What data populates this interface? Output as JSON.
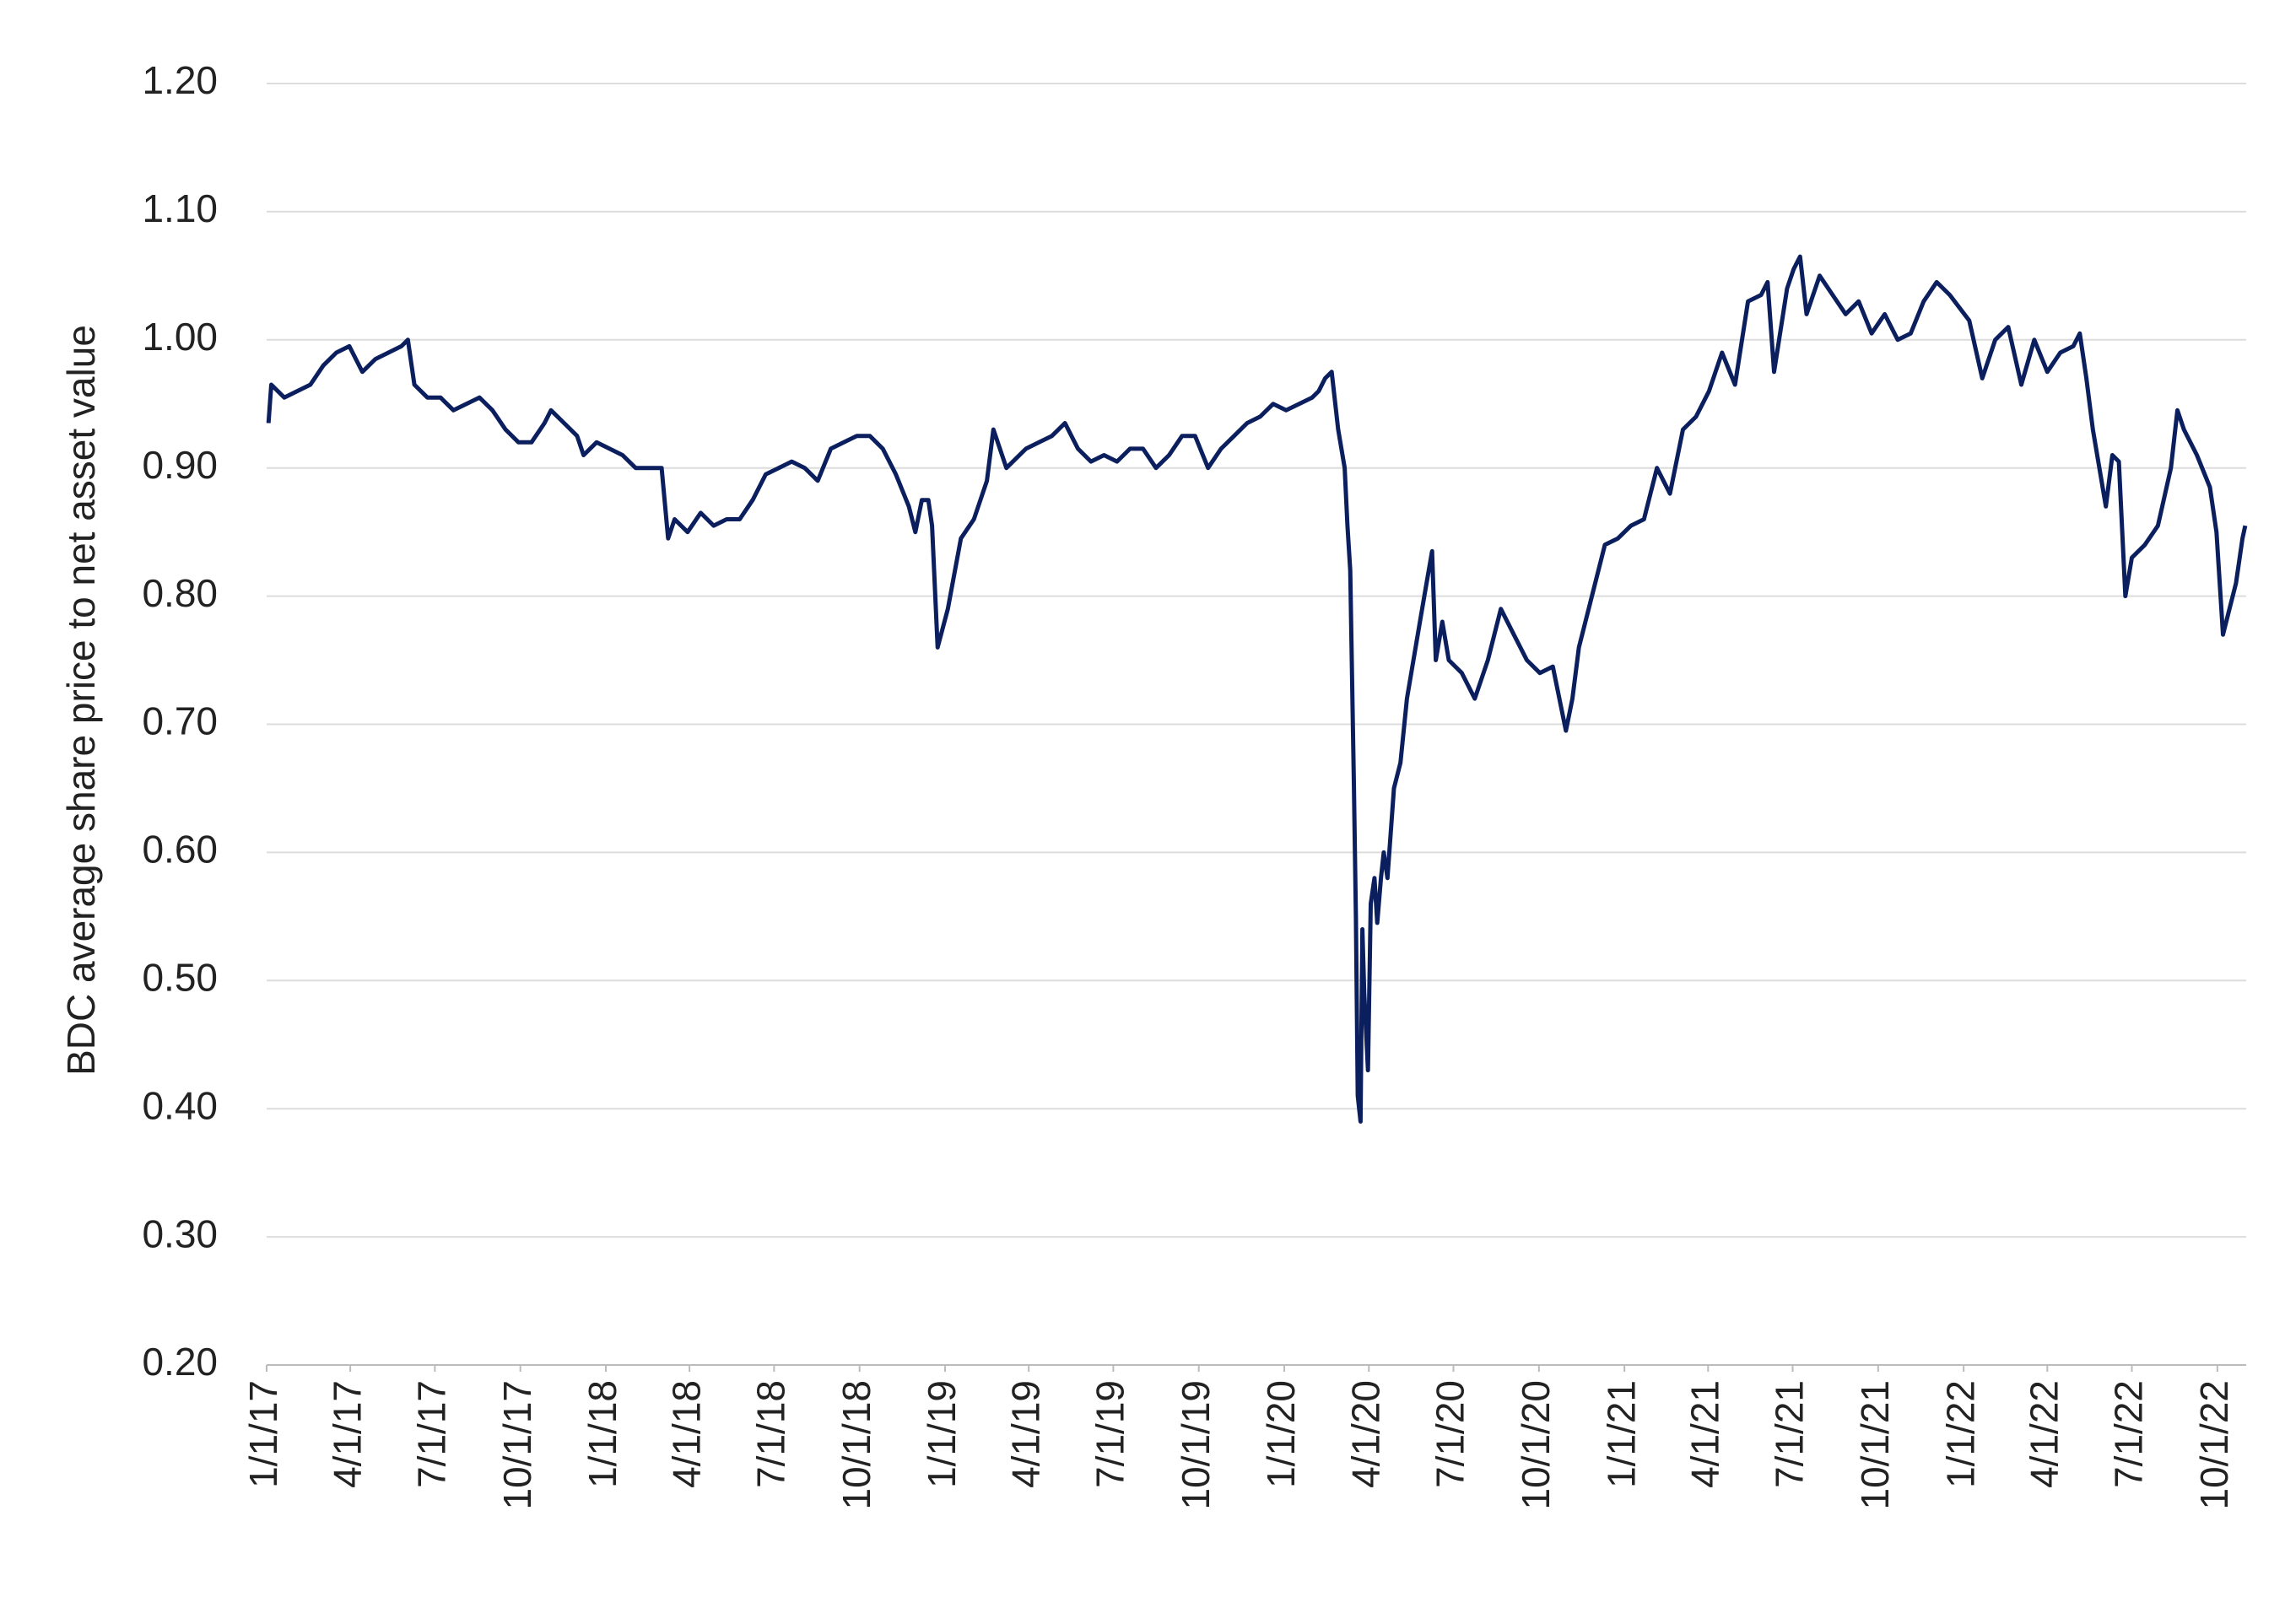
{
  "chart_data": {
    "type": "line",
    "y_label": "BDC average share price to net asset value",
    "x": [
      "2017-01-03",
      "2017-01-06",
      "2017-01-20",
      "2017-02-03",
      "2017-02-17",
      "2017-03-03",
      "2017-03-17",
      "2017-03-31",
      "2017-04-14",
      "2017-04-28",
      "2017-05-12",
      "2017-05-26",
      "2017-06-02",
      "2017-06-09",
      "2017-06-23",
      "2017-07-07",
      "2017-07-21",
      "2017-08-04",
      "2017-08-18",
      "2017-09-01",
      "2017-09-15",
      "2017-09-29",
      "2017-10-13",
      "2017-10-27",
      "2017-11-03",
      "2017-11-17",
      "2017-12-01",
      "2017-12-08",
      "2017-12-22",
      "2018-01-05",
      "2018-01-19",
      "2018-02-02",
      "2018-02-16",
      "2018-03-02",
      "2018-03-09",
      "2018-03-16",
      "2018-03-30",
      "2018-04-13",
      "2018-04-27",
      "2018-05-11",
      "2018-05-25",
      "2018-06-08",
      "2018-06-22",
      "2018-07-06",
      "2018-07-20",
      "2018-08-03",
      "2018-08-17",
      "2018-08-31",
      "2018-09-14",
      "2018-09-28",
      "2018-10-12",
      "2018-10-26",
      "2018-11-09",
      "2018-11-23",
      "2018-11-30",
      "2018-12-07",
      "2018-12-14",
      "2018-12-18",
      "2018-12-24",
      "2019-01-04",
      "2019-01-18",
      "2019-02-01",
      "2019-02-15",
      "2019-02-22",
      "2019-03-08",
      "2019-03-29",
      "2019-04-12",
      "2019-04-26",
      "2019-05-10",
      "2019-05-24",
      "2019-06-07",
      "2019-06-21",
      "2019-07-05",
      "2019-07-19",
      "2019-08-02",
      "2019-08-16",
      "2019-08-30",
      "2019-09-13",
      "2019-09-27",
      "2019-10-11",
      "2019-10-25",
      "2019-11-08",
      "2019-11-22",
      "2019-12-06",
      "2019-12-20",
      "2020-01-03",
      "2020-01-17",
      "2020-01-31",
      "2020-02-07",
      "2020-02-14",
      "2020-02-21",
      "2020-02-28",
      "2020-03-06",
      "2020-03-09",
      "2020-03-12",
      "2020-03-16",
      "2020-03-18",
      "2020-03-20",
      "2020-03-23",
      "2020-03-25",
      "2020-03-27",
      "2020-03-31",
      "2020-04-03",
      "2020-04-07",
      "2020-04-10",
      "2020-04-14",
      "2020-04-17",
      "2020-04-21",
      "2020-04-28",
      "2020-05-05",
      "2020-05-12",
      "2020-05-19",
      "2020-05-26",
      "2020-06-02",
      "2020-06-08",
      "2020-06-12",
      "2020-06-19",
      "2020-06-26",
      "2020-07-10",
      "2020-07-24",
      "2020-08-07",
      "2020-08-21",
      "2020-09-04",
      "2020-09-18",
      "2020-10-02",
      "2020-10-16",
      "2020-10-30",
      "2020-11-06",
      "2020-11-13",
      "2020-11-27",
      "2020-12-11",
      "2020-12-25",
      "2021-01-08",
      "2021-01-22",
      "2021-02-05",
      "2021-02-19",
      "2021-03-05",
      "2021-03-19",
      "2021-04-02",
      "2021-04-16",
      "2021-04-30",
      "2021-05-14",
      "2021-05-28",
      "2021-06-04",
      "2021-06-11",
      "2021-06-25",
      "2021-07-02",
      "2021-07-09",
      "2021-07-16",
      "2021-07-30",
      "2021-08-13",
      "2021-08-27",
      "2021-09-10",
      "2021-09-24",
      "2021-10-08",
      "2021-10-22",
      "2021-11-05",
      "2021-11-19",
      "2021-12-03",
      "2021-12-17",
      "2022-01-07",
      "2022-01-21",
      "2022-02-04",
      "2022-02-18",
      "2022-03-04",
      "2022-03-18",
      "2022-04-01",
      "2022-04-15",
      "2022-04-29",
      "2022-05-06",
      "2022-05-13",
      "2022-05-20",
      "2022-05-27",
      "2022-06-03",
      "2022-06-10",
      "2022-06-17",
      "2022-06-24",
      "2022-07-01",
      "2022-07-15",
      "2022-07-29",
      "2022-08-12",
      "2022-08-19",
      "2022-08-26",
      "2022-09-09",
      "2022-09-23",
      "2022-09-30",
      "2022-10-07",
      "2022-10-14",
      "2022-10-21",
      "2022-10-28",
      "2022-10-31"
    ],
    "series": [
      {
        "color": "#0b1f5e",
        "values": [
          0.935,
          0.965,
          0.955,
          0.96,
          0.965,
          0.98,
          0.99,
          0.995,
          0.975,
          0.985,
          0.99,
          0.995,
          1.0,
          0.965,
          0.955,
          0.955,
          0.945,
          0.95,
          0.955,
          0.945,
          0.93,
          0.92,
          0.92,
          0.935,
          0.945,
          0.935,
          0.925,
          0.91,
          0.92,
          0.915,
          0.91,
          0.9,
          0.9,
          0.9,
          0.845,
          0.86,
          0.85,
          0.865,
          0.855,
          0.86,
          0.86,
          0.875,
          0.895,
          0.9,
          0.905,
          0.9,
          0.89,
          0.915,
          0.92,
          0.925,
          0.925,
          0.915,
          0.895,
          0.87,
          0.85,
          0.875,
          0.875,
          0.855,
          0.76,
          0.79,
          0.845,
          0.86,
          0.89,
          0.93,
          0.9,
          0.915,
          0.92,
          0.925,
          0.935,
          0.915,
          0.905,
          0.91,
          0.905,
          0.915,
          0.915,
          0.9,
          0.91,
          0.925,
          0.925,
          0.9,
          0.915,
          0.925,
          0.935,
          0.94,
          0.95,
          0.945,
          0.95,
          0.955,
          0.96,
          0.97,
          0.975,
          0.93,
          0.9,
          0.855,
          0.82,
          0.65,
          0.55,
          0.41,
          0.39,
          0.54,
          0.49,
          0.43,
          0.56,
          0.58,
          0.545,
          0.58,
          0.6,
          0.58,
          0.65,
          0.67,
          0.72,
          0.75,
          0.78,
          0.81,
          0.835,
          0.75,
          0.78,
          0.75,
          0.74,
          0.72,
          0.75,
          0.79,
          0.77,
          0.75,
          0.74,
          0.745,
          0.695,
          0.72,
          0.76,
          0.8,
          0.84,
          0.845,
          0.855,
          0.86,
          0.9,
          0.88,
          0.93,
          0.94,
          0.96,
          0.99,
          0.965,
          1.03,
          1.035,
          1.045,
          0.975,
          1.04,
          1.055,
          1.065,
          1.02,
          1.05,
          1.035,
          1.02,
          1.03,
          1.005,
          1.02,
          1.0,
          1.005,
          1.03,
          1.045,
          1.035,
          1.015,
          0.97,
          1.0,
          1.01,
          0.965,
          1.0,
          0.975,
          0.99,
          0.995,
          1.005,
          0.97,
          0.93,
          0.9,
          0.87,
          0.91,
          0.905,
          0.8,
          0.83,
          0.84,
          0.855,
          0.9,
          0.945,
          0.93,
          0.91,
          0.885,
          0.85,
          0.77,
          0.79,
          0.81,
          0.845,
          0.855
        ]
      }
    ],
    "xlim": [
      "2017-01-01",
      "2022-11-01"
    ],
    "xticks": [
      {
        "value": "2017-01-01",
        "label": "1/1/17"
      },
      {
        "value": "2017-04-01",
        "label": "4/1/17"
      },
      {
        "value": "2017-07-01",
        "label": "7/1/17"
      },
      {
        "value": "2017-10-01",
        "label": "10/1/17"
      },
      {
        "value": "2018-01-01",
        "label": "1/1/18"
      },
      {
        "value": "2018-04-01",
        "label": "4/1/18"
      },
      {
        "value": "2018-07-01",
        "label": "7/1/18"
      },
      {
        "value": "2018-10-01",
        "label": "10/1/18"
      },
      {
        "value": "2019-01-01",
        "label": "1/1/19"
      },
      {
        "value": "2019-04-01",
        "label": "4/1/19"
      },
      {
        "value": "2019-07-01",
        "label": "7/1/19"
      },
      {
        "value": "2019-10-01",
        "label": "10/1/19"
      },
      {
        "value": "2020-01-01",
        "label": "1/1/20"
      },
      {
        "value": "2020-04-01",
        "label": "4/1/20"
      },
      {
        "value": "2020-07-01",
        "label": "7/1/20"
      },
      {
        "value": "2020-10-01",
        "label": "10/1/20"
      },
      {
        "value": "2021-01-01",
        "label": "1/1/21"
      },
      {
        "value": "2021-04-01",
        "label": "4/1/21"
      },
      {
        "value": "2021-07-01",
        "label": "7/1/21"
      },
      {
        "value": "2021-10-01",
        "label": "10/1/21"
      },
      {
        "value": "2022-01-01",
        "label": "1/1/22"
      },
      {
        "value": "2022-04-01",
        "label": "4/1/22"
      },
      {
        "value": "2022-07-01",
        "label": "7/1/22"
      },
      {
        "value": "2022-10-01",
        "label": "10/1/22"
      }
    ],
    "ylim": [
      0.2,
      1.2
    ],
    "yticks": [
      {
        "value": 0.2,
        "label": "0.20"
      },
      {
        "value": 0.3,
        "label": "0.30"
      },
      {
        "value": 0.4,
        "label": "0.40"
      },
      {
        "value": 0.5,
        "label": "0.50"
      },
      {
        "value": 0.6,
        "label": "0.60"
      },
      {
        "value": 0.7,
        "label": "0.70"
      },
      {
        "value": 0.8,
        "label": "0.80"
      },
      {
        "value": 0.9,
        "label": "0.90"
      },
      {
        "value": 1.0,
        "label": "1.00"
      },
      {
        "value": 1.1,
        "label": "1.10"
      },
      {
        "value": 1.2,
        "label": "1.20"
      }
    ],
    "grid": true
  }
}
